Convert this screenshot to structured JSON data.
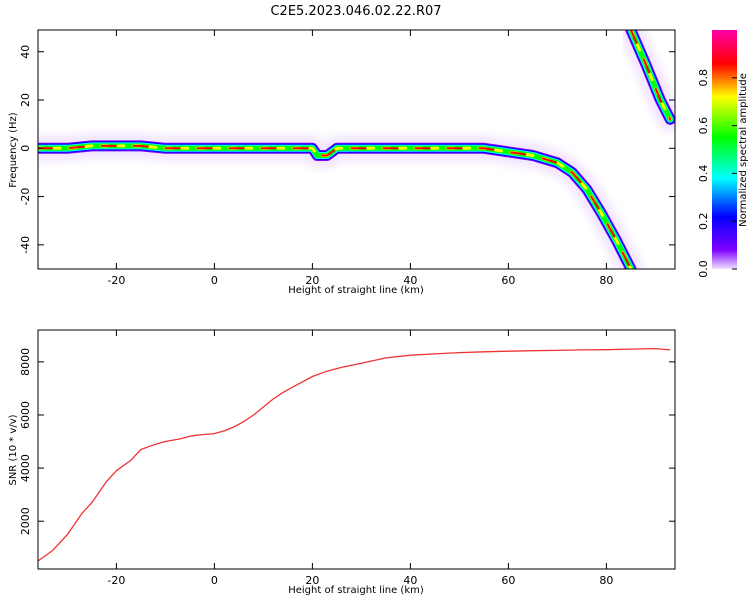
{
  "figure": {
    "title": "C2E5.2023.046.02.22.R07"
  },
  "chart_data": [
    {
      "type": "heatmap",
      "xlabel": "Height of straight line (km)",
      "ylabel": "Frequency (Hz)",
      "xlim": [
        -36,
        94
      ],
      "ylim": [
        -50,
        49
      ],
      "xticks": [
        -20,
        0,
        20,
        40,
        60,
        80
      ],
      "yticks": [
        -40,
        -20,
        0,
        20,
        40
      ],
      "grid": false,
      "colorbar": {
        "label": "Normalized spectral amplitude",
        "range": [
          0.0,
          1.0
        ],
        "ticks": [
          0.0,
          0.2,
          0.4,
          0.6,
          0.8
        ],
        "colormap": [
          "#ff00aa",
          "#ff0000",
          "#ffff00",
          "#00ff00",
          "#00ffff",
          "#0000ff",
          "#8000ff",
          "#f0e0ff"
        ]
      },
      "ridge": {
        "x": [
          -36,
          -30,
          -25,
          -20,
          -15,
          -10,
          -5,
          0,
          5,
          10,
          15,
          20,
          21,
          23,
          25,
          30,
          40,
          50,
          55,
          60,
          65,
          70,
          73,
          76,
          79,
          82,
          85
        ],
        "y": [
          0,
          0,
          1,
          1,
          1,
          0,
          0,
          0,
          0,
          0,
          0,
          0,
          -3,
          -3,
          0,
          0,
          0,
          0,
          0,
          -1.5,
          -3,
          -6,
          -10,
          -17,
          -27,
          -38,
          -50
        ]
      },
      "ridge_upper": {
        "x": [
          85,
          88,
          91,
          93
        ],
        "y": [
          49,
          35,
          20,
          12
        ]
      }
    },
    {
      "type": "line",
      "xlabel": "Height of straight line (km)",
      "ylabel": "SNR (10 * v/v)",
      "xlim": [
        -36,
        94
      ],
      "ylim": [
        200,
        9200
      ],
      "xticks": [
        -20,
        0,
        20,
        40,
        60,
        80
      ],
      "yticks": [
        2000,
        4000,
        6000,
        8000
      ],
      "grid": false,
      "series": [
        {
          "color": "#ee3333",
          "x": [
            -36,
            -33,
            -30,
            -27,
            -25,
            -22,
            -20,
            -17,
            -15,
            -12,
            -10,
            -7,
            -5,
            -3,
            0,
            2,
            4,
            6,
            8,
            10,
            12,
            14,
            16,
            18,
            20,
            23,
            26,
            30,
            35,
            40,
            45,
            50,
            55,
            60,
            65,
            70,
            75,
            80,
            85,
            90,
            93
          ],
          "y": [
            500,
            900,
            1500,
            2300,
            2700,
            3500,
            3900,
            4300,
            4700,
            4900,
            5000,
            5100,
            5200,
            5250,
            5300,
            5400,
            5550,
            5750,
            6000,
            6300,
            6600,
            6850,
            7050,
            7250,
            7450,
            7650,
            7800,
            7950,
            8150,
            8250,
            8300,
            8350,
            8380,
            8400,
            8420,
            8430,
            8450,
            8460,
            8480,
            8500,
            8450
          ]
        }
      ]
    }
  ]
}
